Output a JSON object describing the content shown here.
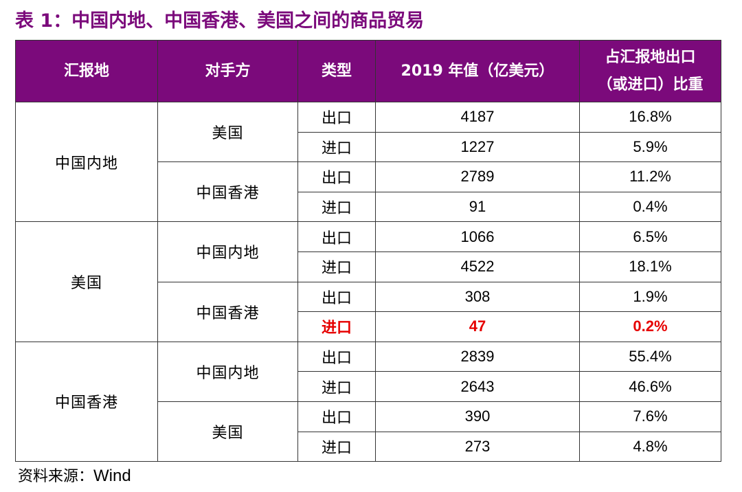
{
  "title": "表 1：中国内地、中国香港、美国之间的商品贸易",
  "headers": {
    "reporter": "汇报地",
    "partner": "对手方",
    "type": "类型",
    "value": "2019 年值（亿美元）",
    "share_line1": "占汇报地出口",
    "share_line2": "（或进口）比重"
  },
  "reporters": [
    {
      "name": "中国内地",
      "partners": [
        {
          "name": "美国",
          "rows": [
            {
              "type": "出口",
              "value": "4187",
              "share": "16.8%"
            },
            {
              "type": "进口",
              "value": "1227",
              "share": "5.9%"
            }
          ]
        },
        {
          "name": "中国香港",
          "rows": [
            {
              "type": "出口",
              "value": "2789",
              "share": "11.2%"
            },
            {
              "type": "进口",
              "value": "91",
              "share": "0.4%"
            }
          ]
        }
      ]
    },
    {
      "name": "美国",
      "partners": [
        {
          "name": "中国内地",
          "rows": [
            {
              "type": "出口",
              "value": "1066",
              "share": "6.5%"
            },
            {
              "type": "进口",
              "value": "4522",
              "share": "18.1%"
            }
          ]
        },
        {
          "name": "中国香港",
          "rows": [
            {
              "type": "出口",
              "value": "308",
              "share": "1.9%"
            },
            {
              "type": "进口",
              "value": "47",
              "share": "0.2%"
            }
          ]
        }
      ]
    },
    {
      "name": "中国香港",
      "partners": [
        {
          "name": "中国内地",
          "rows": [
            {
              "type": "出口",
              "value": "2839",
              "share": "55.4%"
            },
            {
              "type": "进口",
              "value": "2643",
              "share": "46.6%"
            }
          ]
        },
        {
          "name": "美国",
          "rows": [
            {
              "type": "出口",
              "value": "390",
              "share": "7.6%"
            },
            {
              "type": "进口",
              "value": "273",
              "share": "4.8%"
            }
          ]
        }
      ]
    }
  ],
  "highlight_color": "#e60000",
  "header_color": "#7b0a7b",
  "source": {
    "label": "资料来源：",
    "value": "Wind"
  }
}
